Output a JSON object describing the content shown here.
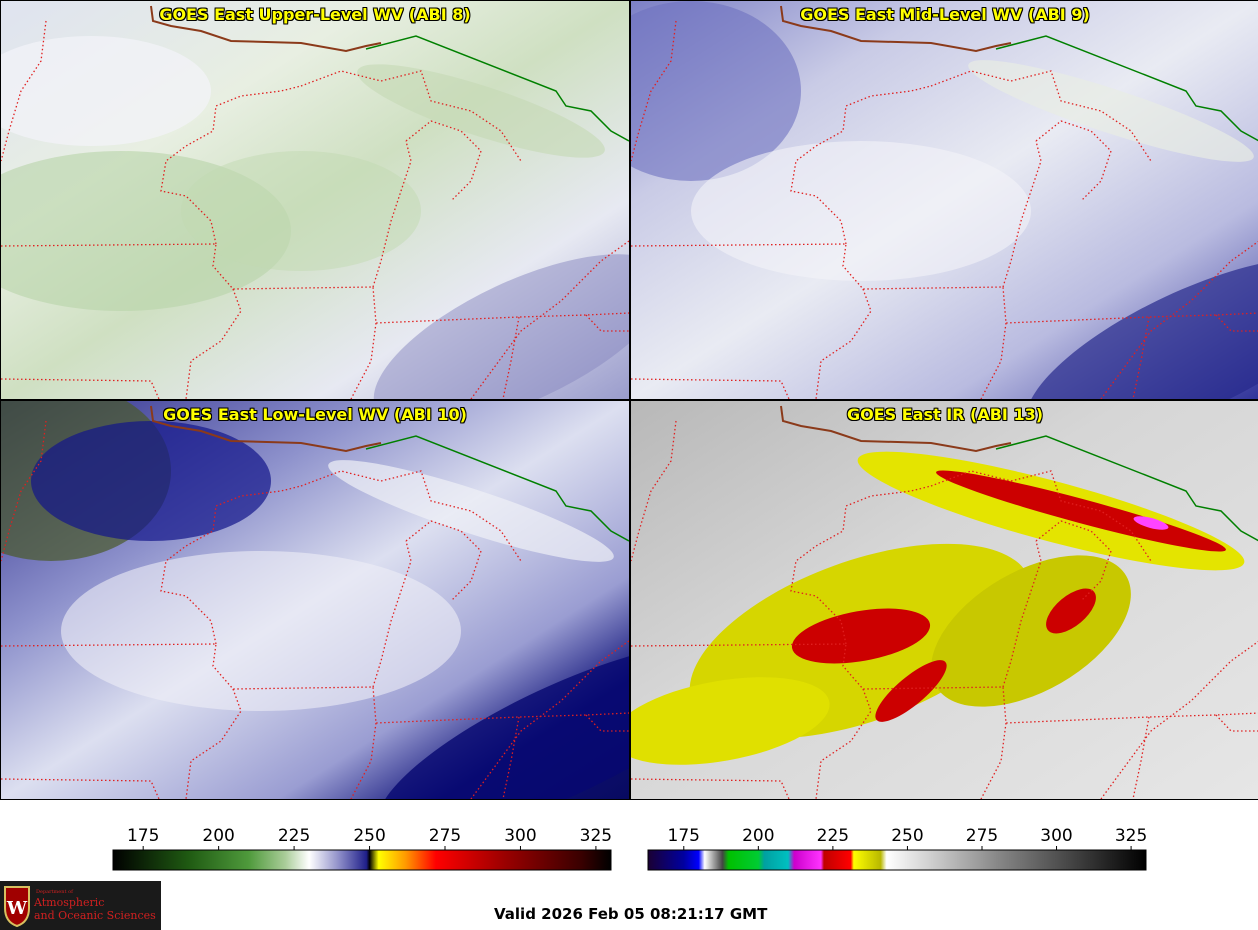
{
  "panels": {
    "upper": {
      "title": "GOES East Upper-Level WV (ABI 8)",
      "palette": "wv"
    },
    "mid": {
      "title": "GOES East Mid-Level WV (ABI 9)",
      "palette": "wv"
    },
    "low": {
      "title": "GOES East Low-Level WV (ABI 10)",
      "palette": "wv"
    },
    "ir": {
      "title": "GOES East IR (ABI 13)",
      "palette": "ir"
    }
  },
  "colorbars": {
    "wv": {
      "ticks": [
        "175",
        "200",
        "225",
        "250",
        "275",
        "300",
        "325"
      ],
      "range": [
        165,
        330
      ],
      "stops": [
        {
          "v": 165,
          "c": "#000000"
        },
        {
          "v": 190,
          "c": "#1f5a12"
        },
        {
          "v": 210,
          "c": "#4f9a3c"
        },
        {
          "v": 222,
          "c": "#a9cc98"
        },
        {
          "v": 230,
          "c": "#ffffff"
        },
        {
          "v": 240,
          "c": "#8d8dc8"
        },
        {
          "v": 249,
          "c": "#1f1f8a"
        },
        {
          "v": 250,
          "c": "#000000"
        },
        {
          "v": 253,
          "c": "#ffff00"
        },
        {
          "v": 262,
          "c": "#ff9900"
        },
        {
          "v": 272,
          "c": "#ff0000"
        },
        {
          "v": 295,
          "c": "#9a0000"
        },
        {
          "v": 320,
          "c": "#3a0000"
        },
        {
          "v": 330,
          "c": "#000000"
        }
      ]
    },
    "ir": {
      "ticks": [
        "175",
        "200",
        "225",
        "250",
        "275",
        "300",
        "325"
      ],
      "range": [
        163,
        330
      ],
      "stops": [
        {
          "v": 163,
          "c": "#1a0033"
        },
        {
          "v": 175,
          "c": "#0000a0"
        },
        {
          "v": 180,
          "c": "#0000ff"
        },
        {
          "v": 182,
          "c": "#ffffff"
        },
        {
          "v": 188,
          "c": "#444444"
        },
        {
          "v": 190,
          "c": "#00c000"
        },
        {
          "v": 200,
          "c": "#00cc33"
        },
        {
          "v": 202,
          "c": "#00a0a0"
        },
        {
          "v": 210,
          "c": "#00c0c0"
        },
        {
          "v": 212,
          "c": "#cc00cc"
        },
        {
          "v": 221,
          "c": "#ff33ff"
        },
        {
          "v": 222,
          "c": "#c00000"
        },
        {
          "v": 231,
          "c": "#ff0000"
        },
        {
          "v": 232,
          "c": "#ffff00"
        },
        {
          "v": 241,
          "c": "#b8b800"
        },
        {
          "v": 243,
          "c": "#ffffff"
        },
        {
          "v": 280,
          "c": "#888888"
        },
        {
          "v": 330,
          "c": "#000000"
        }
      ]
    }
  },
  "footer": {
    "valid": "Valid 2026 Feb 05 08:21:17 GMT",
    "logo_small": "Department of",
    "logo_line1": "Atmospheric",
    "logo_line2": "and Oceanic Sciences"
  },
  "colors": {
    "state_border": "#e02020",
    "intl_border": "#008000",
    "shoreline": "#8b3a1a",
    "title": "#ffff00"
  }
}
